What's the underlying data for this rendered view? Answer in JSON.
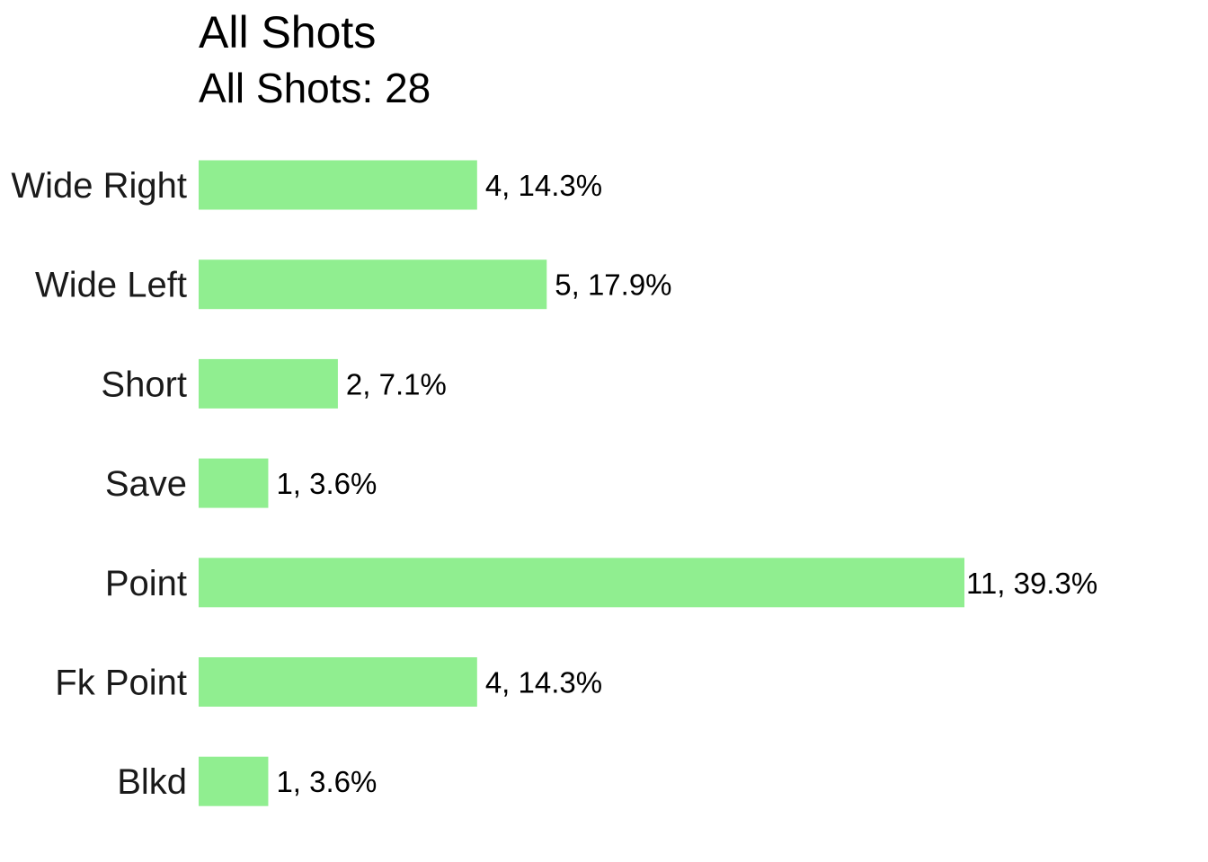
{
  "chart_data": {
    "type": "bar",
    "orientation": "horizontal",
    "title": "All Shots",
    "subtitle": "All Shots: 28",
    "categories": [
      "Wide Right",
      "Wide Left",
      "Short",
      "Save",
      "Point",
      "Fk Point",
      "Blkd"
    ],
    "values": [
      4,
      5,
      2,
      1,
      11,
      4,
      1
    ],
    "data_labels": [
      "4, 14.3%",
      "5, 17.9%",
      "2, 7.1%",
      "1, 3.6%",
      "11, 39.3%",
      "4, 14.3%",
      "1, 3.6%"
    ],
    "bar_color": "#90EE90",
    "xlim": [
      0,
      11
    ],
    "grid": false,
    "legend": "none"
  }
}
